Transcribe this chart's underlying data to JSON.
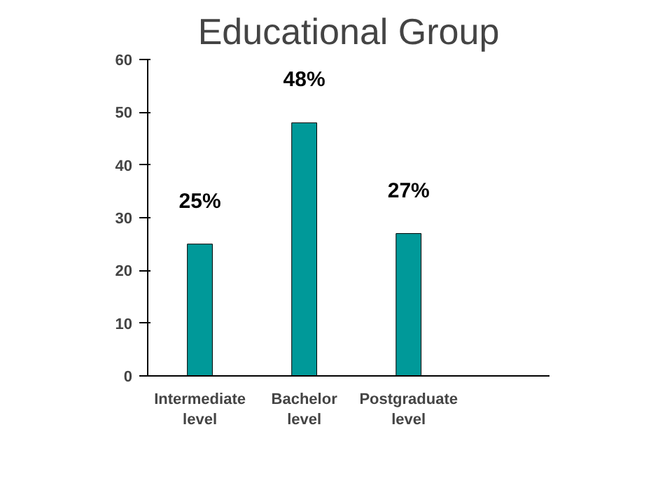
{
  "chart_data": {
    "type": "bar",
    "title": "Educational Group",
    "categories": [
      "Intermediate\nlevel",
      "Bachelor\nlevel",
      "Postgraduate\nlevel"
    ],
    "values": [
      25,
      48,
      27
    ],
    "color": "#009999",
    "value_labels": [
      "25%",
      "48%",
      "27%"
    ],
    "ylim": [
      0,
      60
    ],
    "yticks": [
      0,
      10,
      20,
      30,
      40,
      50,
      60
    ],
    "grid": false
  }
}
